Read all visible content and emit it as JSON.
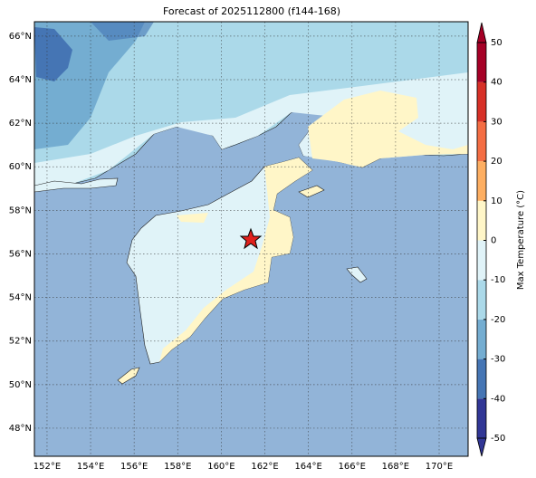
{
  "title": "Forecast of 2025112800 (f144-168)",
  "map": {
    "lonlim": [
      151.42,
      171.33
    ],
    "latlim": [
      46.71,
      66.66
    ],
    "lonticks": [
      {
        "value": 152,
        "label": "152°E"
      },
      {
        "value": 154,
        "label": "154°E"
      },
      {
        "value": 156,
        "label": "156°E"
      },
      {
        "value": 158,
        "label": "158°E"
      },
      {
        "value": 160,
        "label": "160°E"
      },
      {
        "value": 162,
        "label": "162°E"
      },
      {
        "value": 164,
        "label": "164°E"
      },
      {
        "value": 166,
        "label": "166°E"
      },
      {
        "value": 168,
        "label": "168°E"
      },
      {
        "value": 170,
        "label": "170°E"
      }
    ],
    "latticks": [
      {
        "value": 48,
        "label": "48°N"
      },
      {
        "value": 50,
        "label": "50°N"
      },
      {
        "value": 52,
        "label": "52°N"
      },
      {
        "value": 54,
        "label": "54°N"
      },
      {
        "value": 56,
        "label": "56°N"
      },
      {
        "value": 58,
        "label": "58°N"
      },
      {
        "value": 60,
        "label": "60°N"
      },
      {
        "value": 62,
        "label": "62°N"
      },
      {
        "value": 64,
        "label": "64°N"
      },
      {
        "value": 66,
        "label": "66°N"
      }
    ]
  },
  "colorbar": {
    "label": "Max Temperature (°C)",
    "lim": [
      -50,
      50
    ],
    "ticks": [
      -50,
      -40,
      -30,
      -20,
      -10,
      0,
      10,
      20,
      30,
      40,
      50
    ],
    "colors": [
      "#313695",
      "#4575b4",
      "#74add1",
      "#abd9e9",
      "#e0f3f8",
      "#fff6c8",
      "#fdae61",
      "#f46d43",
      "#d73027",
      "#a50026"
    ]
  }
}
